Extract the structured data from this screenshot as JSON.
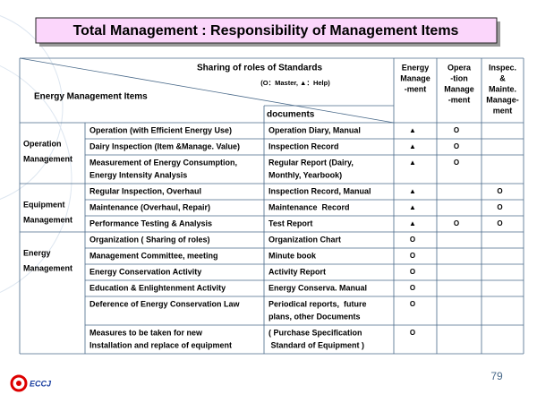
{
  "title": "Total Management : Responsibility of Management Items",
  "header": {
    "sharing": "Sharing of roles of Standards",
    "legend": "(O：Master, ▲：Help)",
    "items": "Energy Management Items",
    "documents": "documents",
    "columns": [
      [
        "Energy",
        "Manage",
        "-ment"
      ],
      [
        "Opera",
        "-tion",
        "Manage",
        "-ment"
      ],
      [
        "Inspec.",
        "&",
        "Mainte.",
        "Manage-",
        "ment"
      ]
    ]
  },
  "groups": [
    {
      "label": [
        "Operation",
        "Management"
      ],
      "rows": [
        {
          "item": [
            "Operation (with Efficient Energy Use)"
          ],
          "doc": [
            "Operation Diary, Manual"
          ],
          "marks": [
            "▲",
            "O",
            null
          ]
        },
        {
          "item": [
            "Dairy Inspection (Item &Manage. Value)"
          ],
          "doc": [
            "Inspection Record"
          ],
          "marks": [
            "▲",
            "O",
            null
          ]
        },
        {
          "item": [
            "Measurement of Energy Consumption,",
            "Energy Intensity Analysis"
          ],
          "doc": [
            "Regular Report (Dairy,",
            "Monthly, Yearbook)"
          ],
          "marks": [
            "▲",
            "O",
            null
          ]
        }
      ]
    },
    {
      "label": [
        "Equipment",
        "Management"
      ],
      "rows": [
        {
          "item": [
            "Regular Inspection, Overhaul"
          ],
          "doc": [
            "Inspection Record, Manual"
          ],
          "marks": [
            "▲",
            null,
            "O"
          ]
        },
        {
          "item": [
            "Maintenance (Overhaul, Repair)"
          ],
          "doc": [
            "Maintenance  Record"
          ],
          "marks": [
            "▲",
            null,
            "O"
          ]
        },
        {
          "item": [
            "Performance Testing & Analysis"
          ],
          "doc": [
            "Test Report"
          ],
          "marks": [
            "▲",
            "O",
            "O"
          ]
        }
      ]
    },
    {
      "label": [
        "Energy",
        "Management"
      ],
      "rows": [
        {
          "item": [
            "Organization ( Sharing of roles)"
          ],
          "doc": [
            "Organization Chart"
          ],
          "marks": [
            "O",
            null,
            null
          ]
        },
        {
          "item": [
            "Management Committee, meeting"
          ],
          "doc": [
            "Minute book"
          ],
          "marks": [
            "O",
            null,
            null
          ]
        },
        {
          "item": [
            "Energy Conservation Activity"
          ],
          "doc": [
            "Activity Report"
          ],
          "marks": [
            "O",
            null,
            null
          ]
        },
        {
          "item": [
            "Education & Enlightenment Activity"
          ],
          "doc": [
            "Energy Conserva. Manual"
          ],
          "marks": [
            "O",
            null,
            null
          ]
        },
        {
          "item": [
            "Deference of Energy Conservation Law"
          ],
          "doc": [
            "Periodical reports,  future",
            "plans, other Documents"
          ],
          "marks": [
            "O",
            null,
            null
          ]
        },
        {
          "item": [
            "Measures to be taken for new",
            "Installation and replace of equipment"
          ],
          "doc": [
            "( Purchase Specification",
            " Standard of Equipment )"
          ],
          "marks": [
            "O",
            null,
            null
          ]
        }
      ]
    }
  ],
  "page_number": "79",
  "logo": "ECCJ"
}
